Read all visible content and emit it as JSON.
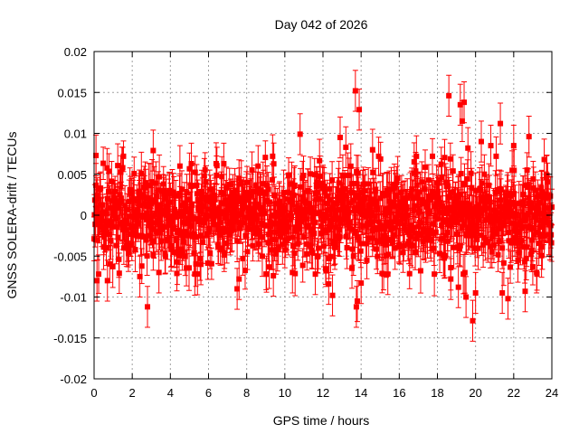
{
  "chart_data": {
    "type": "scatter",
    "title": "Day 042 of 2026",
    "xlabel": "GPS time / hours",
    "ylabel": "GNSS SOLERA-drift / TECUs",
    "xlim": [
      0,
      24
    ],
    "ylim": [
      -0.02,
      0.02
    ],
    "x_ticks": [
      0,
      2,
      4,
      6,
      8,
      10,
      12,
      14,
      16,
      18,
      20,
      22,
      24
    ],
    "x_tick_labels": [
      "0",
      "2",
      "4",
      "6",
      "8",
      "10",
      "12",
      "14",
      "16",
      "18",
      "20",
      "22",
      "24"
    ],
    "y_ticks": [
      -0.02,
      -0.015,
      -0.01,
      -0.005,
      0,
      0.005,
      0.01,
      0.015,
      0.02
    ],
    "y_tick_labels": [
      "-0.02",
      "-0.015",
      "-0.01",
      "-0.005",
      "0",
      "0.005",
      "0.01",
      "0.015",
      "0.02"
    ],
    "grid": true,
    "marker": "filled-square",
    "error_bars": true,
    "series_color": "#ff0000",
    "points": [
      {
        "x": 0.1,
        "y": 0.0073,
        "err": 0.0025
      },
      {
        "x": 0.15,
        "y": -0.008,
        "err": 0.0025
      },
      {
        "x": 0.7,
        "y": -0.008,
        "err": 0.0025
      },
      {
        "x": 1.5,
        "y": 0.0058,
        "err": 0.0025
      },
      {
        "x": 2.4,
        "y": -0.0075,
        "err": 0.0025
      },
      {
        "x": 2.8,
        "y": -0.0112,
        "err": 0.0025
      },
      {
        "x": 3.1,
        "y": 0.0079,
        "err": 0.0025
      },
      {
        "x": 3.4,
        "y": -0.007,
        "err": 0.0025
      },
      {
        "x": 4.5,
        "y": 0.006,
        "err": 0.0025
      },
      {
        "x": 5.1,
        "y": 0.0063,
        "err": 0.0025
      },
      {
        "x": 5.6,
        "y": -0.006,
        "err": 0.0025
      },
      {
        "x": 6.8,
        "y": 0.0063,
        "err": 0.0025
      },
      {
        "x": 7.5,
        "y": -0.009,
        "err": 0.0025
      },
      {
        "x": 7.6,
        "y": -0.0078,
        "err": 0.0025
      },
      {
        "x": 8.6,
        "y": 0.006,
        "err": 0.0025
      },
      {
        "x": 9.4,
        "y": -0.0074,
        "err": 0.0025
      },
      {
        "x": 10.4,
        "y": -0.007,
        "err": 0.0025
      },
      {
        "x": 10.8,
        "y": 0.0099,
        "err": 0.0025
      },
      {
        "x": 11.6,
        "y": -0.0072,
        "err": 0.0025
      },
      {
        "x": 12.3,
        "y": -0.0084,
        "err": 0.0025
      },
      {
        "x": 12.5,
        "y": -0.0098,
        "err": 0.0025
      },
      {
        "x": 12.9,
        "y": 0.0095,
        "err": 0.0025
      },
      {
        "x": 13.2,
        "y": 0.0083,
        "err": 0.0025
      },
      {
        "x": 13.7,
        "y": 0.0152,
        "err": 0.0025
      },
      {
        "x": 13.75,
        "y": -0.0112,
        "err": 0.0025
      },
      {
        "x": 13.8,
        "y": -0.0105,
        "err": 0.0025
      },
      {
        "x": 13.9,
        "y": 0.0129,
        "err": 0.0025
      },
      {
        "x": 14.0,
        "y": -0.0083,
        "err": 0.0025
      },
      {
        "x": 14.6,
        "y": 0.008,
        "err": 0.0025
      },
      {
        "x": 15.4,
        "y": -0.0072,
        "err": 0.0025
      },
      {
        "x": 16.9,
        "y": 0.0072,
        "err": 0.0025
      },
      {
        "x": 18.6,
        "y": 0.0146,
        "err": 0.0025
      },
      {
        "x": 18.7,
        "y": -0.0078,
        "err": 0.0025
      },
      {
        "x": 19.1,
        "y": -0.0088,
        "err": 0.0025
      },
      {
        "x": 19.2,
        "y": 0.0135,
        "err": 0.0025
      },
      {
        "x": 19.3,
        "y": 0.0115,
        "err": 0.0025
      },
      {
        "x": 19.4,
        "y": 0.0138,
        "err": 0.0025
      },
      {
        "x": 19.5,
        "y": -0.01,
        "err": 0.0025
      },
      {
        "x": 19.6,
        "y": 0.0082,
        "err": 0.0025
      },
      {
        "x": 19.85,
        "y": -0.0129,
        "err": 0.0025
      },
      {
        "x": 20.0,
        "y": -0.0095,
        "err": 0.0025
      },
      {
        "x": 20.3,
        "y": 0.009,
        "err": 0.0025
      },
      {
        "x": 20.8,
        "y": 0.0085,
        "err": 0.0025
      },
      {
        "x": 21.3,
        "y": 0.0112,
        "err": 0.0025
      },
      {
        "x": 21.4,
        "y": -0.0095,
        "err": 0.0025
      },
      {
        "x": 21.7,
        "y": -0.0102,
        "err": 0.0025
      },
      {
        "x": 22.0,
        "y": 0.0085,
        "err": 0.0025
      },
      {
        "x": 22.6,
        "y": -0.0093,
        "err": 0.0025
      },
      {
        "x": 22.8,
        "y": 0.0096,
        "err": 0.0025
      },
      {
        "x": 23.2,
        "y": -0.007,
        "err": 0.0025
      },
      {
        "x": 23.6,
        "y": 0.0068,
        "err": 0.0025
      }
    ],
    "dense_band": {
      "x_range": [
        0,
        24
      ],
      "step": 0.02,
      "center": 0,
      "typical_spread": 0.0028,
      "err": 0.0023
    }
  }
}
